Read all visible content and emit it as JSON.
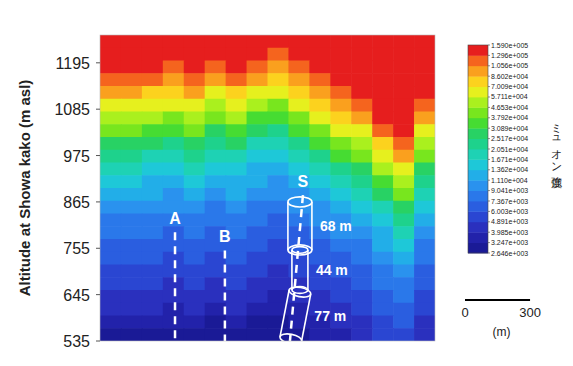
{
  "chart_data": {
    "type": "heatmap",
    "y_label": "Altitude at Showa kako (m asl)",
    "xlim": [
      0,
      1545
    ],
    "ylim": [
      535,
      1261
    ],
    "yticks": [
      535,
      645,
      755,
      865,
      975,
      1085,
      1195
    ],
    "tick_labels": "y",
    "cells": [
      [
        145000,
        145000,
        145000,
        145000,
        145000,
        145000,
        145000,
        145000,
        145000,
        145000,
        145000,
        145000,
        145000,
        145000,
        145000,
        145000
      ],
      [
        145000,
        145000,
        145000,
        145000,
        145000,
        145000,
        145000,
        145000,
        118000,
        145000,
        145000,
        145000,
        145000,
        145000,
        145000,
        145000
      ],
      [
        145000,
        145000,
        145000,
        118000,
        145000,
        118000,
        145000,
        118000,
        95000,
        118000,
        145000,
        145000,
        145000,
        145000,
        145000,
        145000
      ],
      [
        118000,
        118000,
        118000,
        95000,
        118000,
        95000,
        118000,
        95000,
        78000,
        95000,
        118000,
        145000,
        145000,
        145000,
        145000,
        145000
      ],
      [
        95000,
        95000,
        78000,
        78000,
        95000,
        63000,
        78000,
        63000,
        63000,
        78000,
        95000,
        118000,
        145000,
        145000,
        145000,
        145000
      ],
      [
        63000,
        63000,
        63000,
        63000,
        63000,
        52000,
        63000,
        52000,
        42000,
        63000,
        78000,
        95000,
        118000,
        145000,
        145000,
        118000
      ],
      [
        52000,
        52000,
        52000,
        42000,
        52000,
        42000,
        52000,
        34000,
        34000,
        42000,
        63000,
        78000,
        95000,
        145000,
        145000,
        95000
      ],
      [
        42000,
        42000,
        34000,
        34000,
        42000,
        28000,
        34000,
        28000,
        23000,
        34000,
        42000,
        63000,
        63000,
        118000,
        145000,
        63000
      ],
      [
        28000,
        28000,
        28000,
        23000,
        28000,
        23000,
        28000,
        18500,
        18500,
        23000,
        34000,
        42000,
        52000,
        78000,
        118000,
        52000
      ],
      [
        23000,
        23000,
        18500,
        18500,
        23000,
        18500,
        18500,
        15000,
        15000,
        18500,
        23000,
        34000,
        42000,
        63000,
        95000,
        42000
      ],
      [
        18500,
        18500,
        15000,
        15000,
        18500,
        15000,
        15000,
        12300,
        12300,
        15000,
        18500,
        23000,
        28000,
        52000,
        63000,
        28000
      ],
      [
        15000,
        15000,
        12300,
        12300,
        15000,
        12300,
        12300,
        12300,
        10000,
        12300,
        15000,
        18500,
        23000,
        34000,
        52000,
        23000
      ],
      [
        12300,
        12300,
        12300,
        10000,
        12300,
        10000,
        12300,
        10000,
        10000,
        10000,
        12300,
        15000,
        18500,
        28000,
        42000,
        18500
      ],
      [
        10000,
        10000,
        10000,
        10000,
        10000,
        8200,
        10000,
        8200,
        8200,
        10000,
        10000,
        12300,
        15000,
        18500,
        28000,
        15000
      ],
      [
        8200,
        8200,
        8200,
        8200,
        8200,
        8200,
        8200,
        8200,
        6700,
        8200,
        10000,
        10000,
        12300,
        15000,
        23000,
        12300
      ],
      [
        8200,
        8200,
        8200,
        6700,
        8200,
        6700,
        8200,
        6700,
        6700,
        6700,
        8200,
        10000,
        10000,
        12300,
        18500,
        10000
      ],
      [
        6700,
        6700,
        6700,
        6700,
        6700,
        6700,
        6700,
        6700,
        5400,
        6700,
        6700,
        8200,
        8200,
        12300,
        15000,
        8200
      ],
      [
        6700,
        6700,
        6700,
        5400,
        6700,
        5400,
        6700,
        5400,
        5400,
        5400,
        6700,
        6700,
        8200,
        10000,
        12300,
        8200
      ],
      [
        5400,
        5400,
        5400,
        5400,
        5400,
        5400,
        5400,
        5400,
        4400,
        5400,
        5400,
        6700,
        6700,
        8200,
        10000,
        6700
      ],
      [
        5400,
        5400,
        5400,
        4400,
        5400,
        4400,
        5400,
        4400,
        4400,
        4400,
        5400,
        5400,
        6700,
        8200,
        8200,
        6700
      ],
      [
        4400,
        4400,
        4400,
        4400,
        4400,
        4400,
        4400,
        4400,
        3600,
        4400,
        4400,
        5400,
        5400,
        6700,
        8200,
        5400
      ],
      [
        4400,
        4400,
        4400,
        3600,
        4400,
        3600,
        4400,
        3600,
        3600,
        3600,
        4400,
        4400,
        5400,
        6700,
        6700,
        5400
      ],
      [
        3600,
        3600,
        3600,
        3600,
        3600,
        2900,
        3600,
        2900,
        2900,
        3600,
        3600,
        4400,
        4400,
        5400,
        6700,
        4400
      ],
      [
        2900,
        2900,
        2900,
        2900,
        2900,
        2900,
        2900,
        2900,
        2900,
        2900,
        3600,
        3600,
        4400,
        5400,
        5400,
        4400
      ]
    ],
    "colorbar": {
      "title": "ミュオン強度",
      "log": true,
      "range": [
        2646,
        159000
      ],
      "ticks": [
        {
          "value": 2646,
          "label": "2.646e+003"
        },
        {
          "value": 3247,
          "label": "3.247e+003"
        },
        {
          "value": 3985,
          "label": "3.985e+003"
        },
        {
          "value": 4891,
          "label": "4.891e+003"
        },
        {
          "value": 6003,
          "label": "6.003e+003"
        },
        {
          "value": 7367,
          "label": "7.367e+003"
        },
        {
          "value": 9041,
          "label": "9.041e+003"
        },
        {
          "value": 11100,
          "label": "1.110e+004"
        },
        {
          "value": 13620,
          "label": "1.362e+004"
        },
        {
          "value": 16710,
          "label": "1.671e+004"
        },
        {
          "value": 20510,
          "label": "2.051e+004"
        },
        {
          "value": 25170,
          "label": "2.517e+004"
        },
        {
          "value": 30890,
          "label": "3.089e+004"
        },
        {
          "value": 37920,
          "label": "3.792e+004"
        },
        {
          "value": 46530,
          "label": "4.653e+004"
        },
        {
          "value": 57110,
          "label": "5.711e+004"
        },
        {
          "value": 70090,
          "label": "7.009e+004"
        },
        {
          "value": 86020,
          "label": "8.602e+004"
        },
        {
          "value": 105600,
          "label": "1.056e+005"
        },
        {
          "value": 129600,
          "label": "1.296e+005"
        },
        {
          "value": 159000,
          "label": "1.590e+005"
        }
      ],
      "colors": [
        "#1a1a96",
        "#2222aa",
        "#2a30be",
        "#2a46d2",
        "#2a5ee0",
        "#2a78ea",
        "#2a92ee",
        "#22aee8",
        "#1ec8d8",
        "#1ed2b4",
        "#1ed28c",
        "#28d264",
        "#46dc32",
        "#78e61e",
        "#aaf01e",
        "#e6f01e",
        "#fcd21e",
        "#faa01e",
        "#f5641e",
        "#e61e1e"
      ]
    },
    "annotations": [
      {
        "label": "A",
        "x": [
          346,
          346
        ],
        "y": [
          793,
          535
        ]
      },
      {
        "label": "B",
        "x": [
          576,
          576
        ],
        "y": [
          750,
          535
        ]
      },
      {
        "label": "S",
        "x": [
          936,
          876
        ],
        "y": [
          881,
          535
        ]
      }
    ],
    "cylinders": [
      {
        "label": "68 m",
        "x": [
          922,
          922
        ],
        "y": [
          865,
          751
        ]
      },
      {
        "label": "44 m",
        "x": [
          922,
          922
        ],
        "y": [
          751,
          656
        ]
      },
      {
        "label": "77 m",
        "x": [
          922,
          880
        ],
        "y": [
          651,
          540
        ]
      }
    ],
    "scale_bar": {
      "ticks": [
        0,
        300
      ],
      "unit": "(m)"
    }
  }
}
